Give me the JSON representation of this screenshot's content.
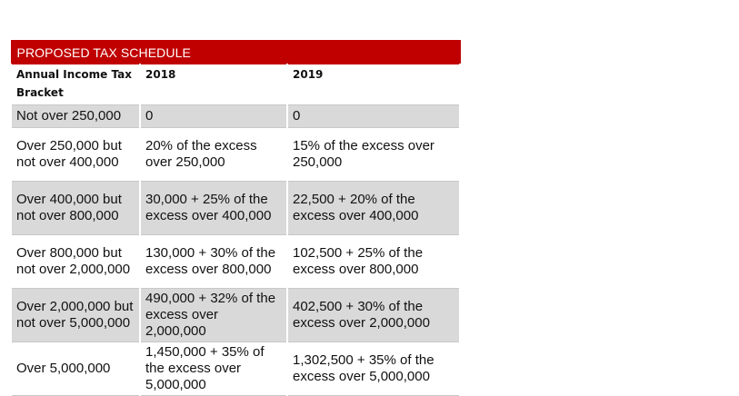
{
  "table": {
    "title": "PROPOSED TAX SCHEDULE",
    "headers": [
      "Annual Income Tax Bracket",
      "2018",
      "2019"
    ],
    "rows": [
      {
        "bracket": "Not over  250,000",
        "y2018": "0",
        "y2019": "0"
      },
      {
        "bracket": "Over  250,000 but not over 400,000",
        "y2018": "20% of the excess over 250,000",
        "y2019": "15% of the excess over 250,000"
      },
      {
        "bracket": "Over  400,000 but not over 800,000",
        "y2018": "30,000 + 25% of the excess over 400,000",
        "y2019": "22,500 + 20% of the excess over 400,000"
      },
      {
        "bracket": "Over  800,000 but not over 2,000,000",
        "y2018": "130,000 + 30% of the excess over 800,000",
        "y2019": "102,500 + 25% of the excess over  800,000"
      },
      {
        "bracket": "Over 2,000,000 but not over 5,000,000",
        "y2018": "490,000 + 32% of the excess over 2,000,000",
        "y2019": "402,500 + 30% of the excess over 2,000,000"
      },
      {
        "bracket": "Over 5,000,000",
        "y2018": "1,450,000 + 35% of the excess over 5,000,000",
        "y2019": "1,302,500 + 35% of the excess over 5,000,000"
      }
    ]
  },
  "colors": {
    "title_bar": "#c00000",
    "title_text": "#ffffff",
    "shaded_row": "#d9d9d9",
    "grid": "#c8c8c8"
  }
}
